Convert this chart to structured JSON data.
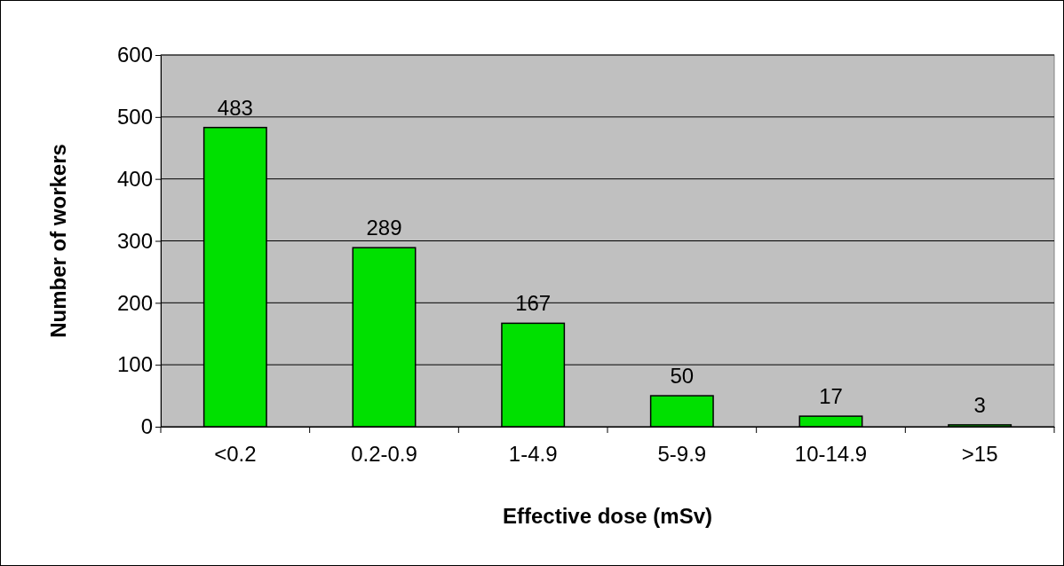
{
  "chart_data": {
    "type": "bar",
    "xlabel": "Effective dose (mSv)",
    "ylabel": "Number of workers",
    "categories": [
      "<0.2",
      "0.2-0.9",
      "1-4.9",
      "5-9.9",
      "10-14.9",
      ">15"
    ],
    "values": [
      483,
      289,
      167,
      50,
      17,
      3
    ],
    "color": "#00e000",
    "ylim": [
      0,
      600
    ],
    "yticks": [
      0,
      100,
      200,
      300,
      400,
      500,
      600
    ],
    "grid": "y",
    "data_labels": true
  }
}
